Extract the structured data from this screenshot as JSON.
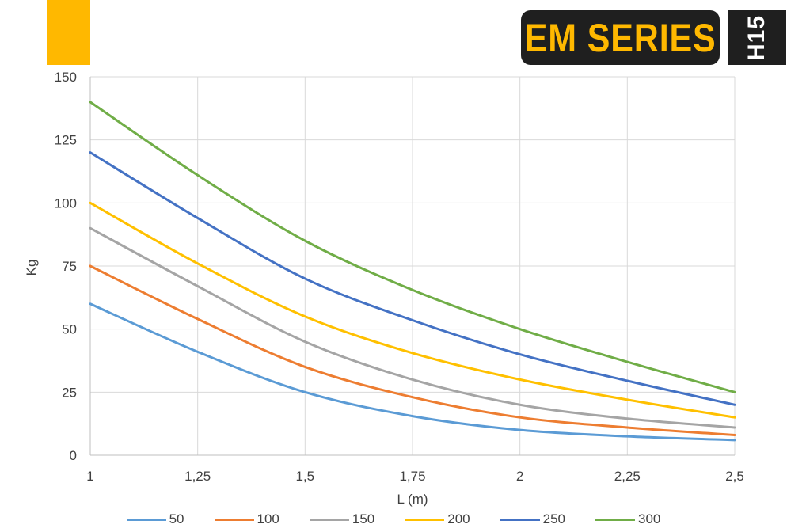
{
  "brand": {
    "series_label": "EM SERIES",
    "logo_text": "H15",
    "accent_color": "#FFB800",
    "dark_color": "#1F1F1F"
  },
  "chart_data": {
    "type": "line",
    "xlabel": "L (m)",
    "ylabel": "Kg",
    "xlim": [
      1,
      2.5
    ],
    "ylim": [
      0,
      150
    ],
    "x_ticks": [
      1,
      1.25,
      1.5,
      1.75,
      2,
      2.25,
      2.5
    ],
    "x_tick_labels": [
      "1",
      "1,25",
      "1,5",
      "1,75",
      "2",
      "2,25",
      "2,5"
    ],
    "y_ticks": [
      0,
      25,
      50,
      75,
      100,
      125,
      150
    ],
    "y_tick_labels": [
      "0",
      "25",
      "50",
      "75",
      "100",
      "125",
      "150"
    ],
    "grid": true,
    "legend_position": "bottom",
    "x": [
      1,
      1.25,
      1.5,
      1.75,
      2,
      2.25,
      2.5
    ],
    "series": [
      {
        "name": "50",
        "color": "#5B9BD5",
        "values": [
          60,
          41,
          25,
          15.5,
          10,
          7.5,
          6
        ]
      },
      {
        "name": "100",
        "color": "#ED7D31",
        "values": [
          75,
          54,
          35,
          23,
          15,
          11,
          8
        ]
      },
      {
        "name": "150",
        "color": "#A5A5A5",
        "values": [
          90,
          67,
          45,
          30,
          20,
          14.5,
          11
        ]
      },
      {
        "name": "200",
        "color": "#FFC000",
        "values": [
          100,
          76,
          55,
          40.5,
          30,
          22,
          15
        ]
      },
      {
        "name": "250",
        "color": "#4472C4",
        "values": [
          120,
          94,
          70,
          53.5,
          40,
          29.5,
          20
        ]
      },
      {
        "name": "300",
        "color": "#70AD47",
        "values": [
          140,
          111,
          85,
          65.5,
          50,
          37,
          25
        ]
      }
    ]
  }
}
